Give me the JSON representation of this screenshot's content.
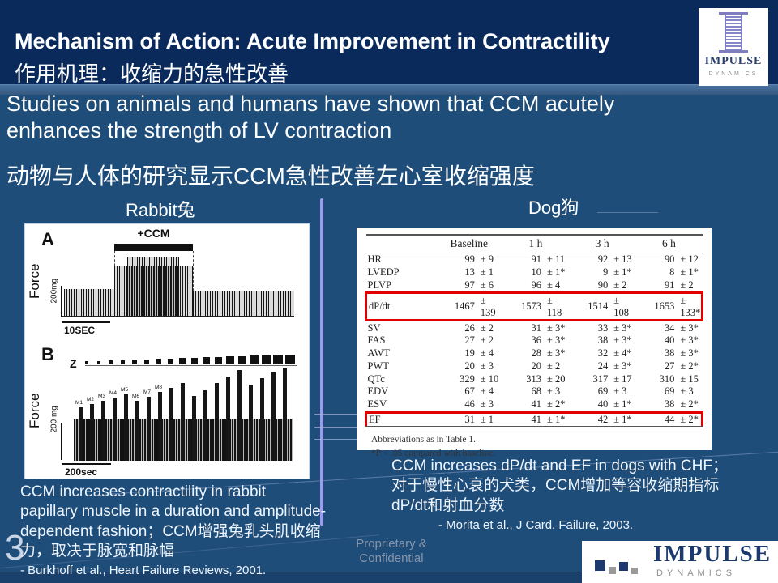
{
  "slide": {
    "title_en": "Mechanism of Action: Acute Improvement in Contractility",
    "title_cn": "作用机理：收缩力的急性改善",
    "body_en_1": "Studies on animals and humans have shown that CCM acutely",
    "body_en_2": "enhances the strength of LV contraction",
    "body_cn": "动物与人体的研究显示CCM急性改善左心室收缩强度",
    "page_number": "3",
    "footer_line1": "Proprietary &",
    "footer_line2": "Confidential"
  },
  "labels": {
    "rabbit": "Rabbit兔",
    "dog": "Dog狗"
  },
  "logo": {
    "impulse": "IMPULSE",
    "dynamics": "DYNAMICS"
  },
  "figure": {
    "panel_a": {
      "label": "A",
      "ccm": "+CCM",
      "force": "Force",
      "scale_y": "200mg",
      "scale_x": "10SEC"
    },
    "panel_b": {
      "label": "B",
      "z": "Z",
      "force": "Force",
      "scale_y": "200 mg",
      "scale_x": "200sec",
      "peak_labels": [
        "M1",
        "M2",
        "M3",
        "M4",
        "M5",
        "M6",
        "M7",
        "M8"
      ]
    }
  },
  "table": {
    "headers": [
      "Baseline",
      "1 h",
      "3 h",
      "6 h"
    ],
    "pm_symbol": "±",
    "rows": [
      {
        "label": "HR",
        "values": [
          "99",
          "91",
          "92",
          "90"
        ],
        "errors": [
          "9",
          "11",
          "13",
          "12"
        ],
        "highlight": false
      },
      {
        "label": "LVEDP",
        "values": [
          "13",
          "10",
          "9",
          "8"
        ],
        "errors": [
          "1",
          "1*",
          "1*",
          "1*"
        ],
        "highlight": false
      },
      {
        "label": "PLVP",
        "values": [
          "97",
          "96",
          "90",
          "91"
        ],
        "errors": [
          "6",
          "4",
          "2",
          "2"
        ],
        "highlight": false
      },
      {
        "label": "dP/dt",
        "values": [
          "1467",
          "1573",
          "1514",
          "1653"
        ],
        "errors": [
          "139",
          "118",
          "108",
          "133*"
        ],
        "highlight": true
      },
      {
        "label": "SV",
        "values": [
          "26",
          "31",
          "33",
          "34"
        ],
        "errors": [
          "2",
          "3*",
          "3*",
          "3*"
        ],
        "highlight": false
      },
      {
        "label": "FAS",
        "values": [
          "27",
          "36",
          "38",
          "40"
        ],
        "errors": [
          "2",
          "3*",
          "3*",
          "3*"
        ],
        "highlight": false
      },
      {
        "label": "AWT",
        "values": [
          "19",
          "28",
          "32",
          "38"
        ],
        "errors": [
          "4",
          "3*",
          "4*",
          "3*"
        ],
        "highlight": false
      },
      {
        "label": "PWT",
        "values": [
          "20",
          "20",
          "24",
          "27"
        ],
        "errors": [
          "3",
          "2",
          "3*",
          "2*"
        ],
        "highlight": false
      },
      {
        "label": "QTc",
        "values": [
          "329",
          "313",
          "317",
          "310"
        ],
        "errors": [
          "10",
          "20",
          "17",
          "15"
        ],
        "highlight": false
      },
      {
        "label": "EDV",
        "values": [
          "67",
          "68",
          "69",
          "69"
        ],
        "errors": [
          "4",
          "3",
          "3",
          "3"
        ],
        "highlight": false
      },
      {
        "label": "ESV",
        "values": [
          "46",
          "41",
          "40",
          "38"
        ],
        "errors": [
          "3",
          "2*",
          "1*",
          "2*"
        ],
        "highlight": false
      },
      {
        "label": "EF",
        "values": [
          "31",
          "41",
          "42",
          "44"
        ],
        "errors": [
          "1",
          "1*",
          "1*",
          "2*"
        ],
        "highlight": true
      }
    ],
    "footnote1": "Abbreviations as in Table 1.",
    "footnote2": "*P < .05 compared with baseline."
  },
  "captions": {
    "left_text": "CCM increases contractility in rabbit papillary muscle in a duration and amplitude-dependent fashion；CCM增强兔乳头肌收缩力，取决于脉宽和脉幅",
    "left_ref": "- Burkhoff et al., Heart Failure Reviews, 2001.",
    "right_text": "CCM increases dP/dt and EF in dogs with CHF；对于慢性心衰的犬类，CCM增加等容收缩期指标dP/dt和射血分数",
    "right_ref": "- Morita et al., J Card. Failure, 2003."
  }
}
